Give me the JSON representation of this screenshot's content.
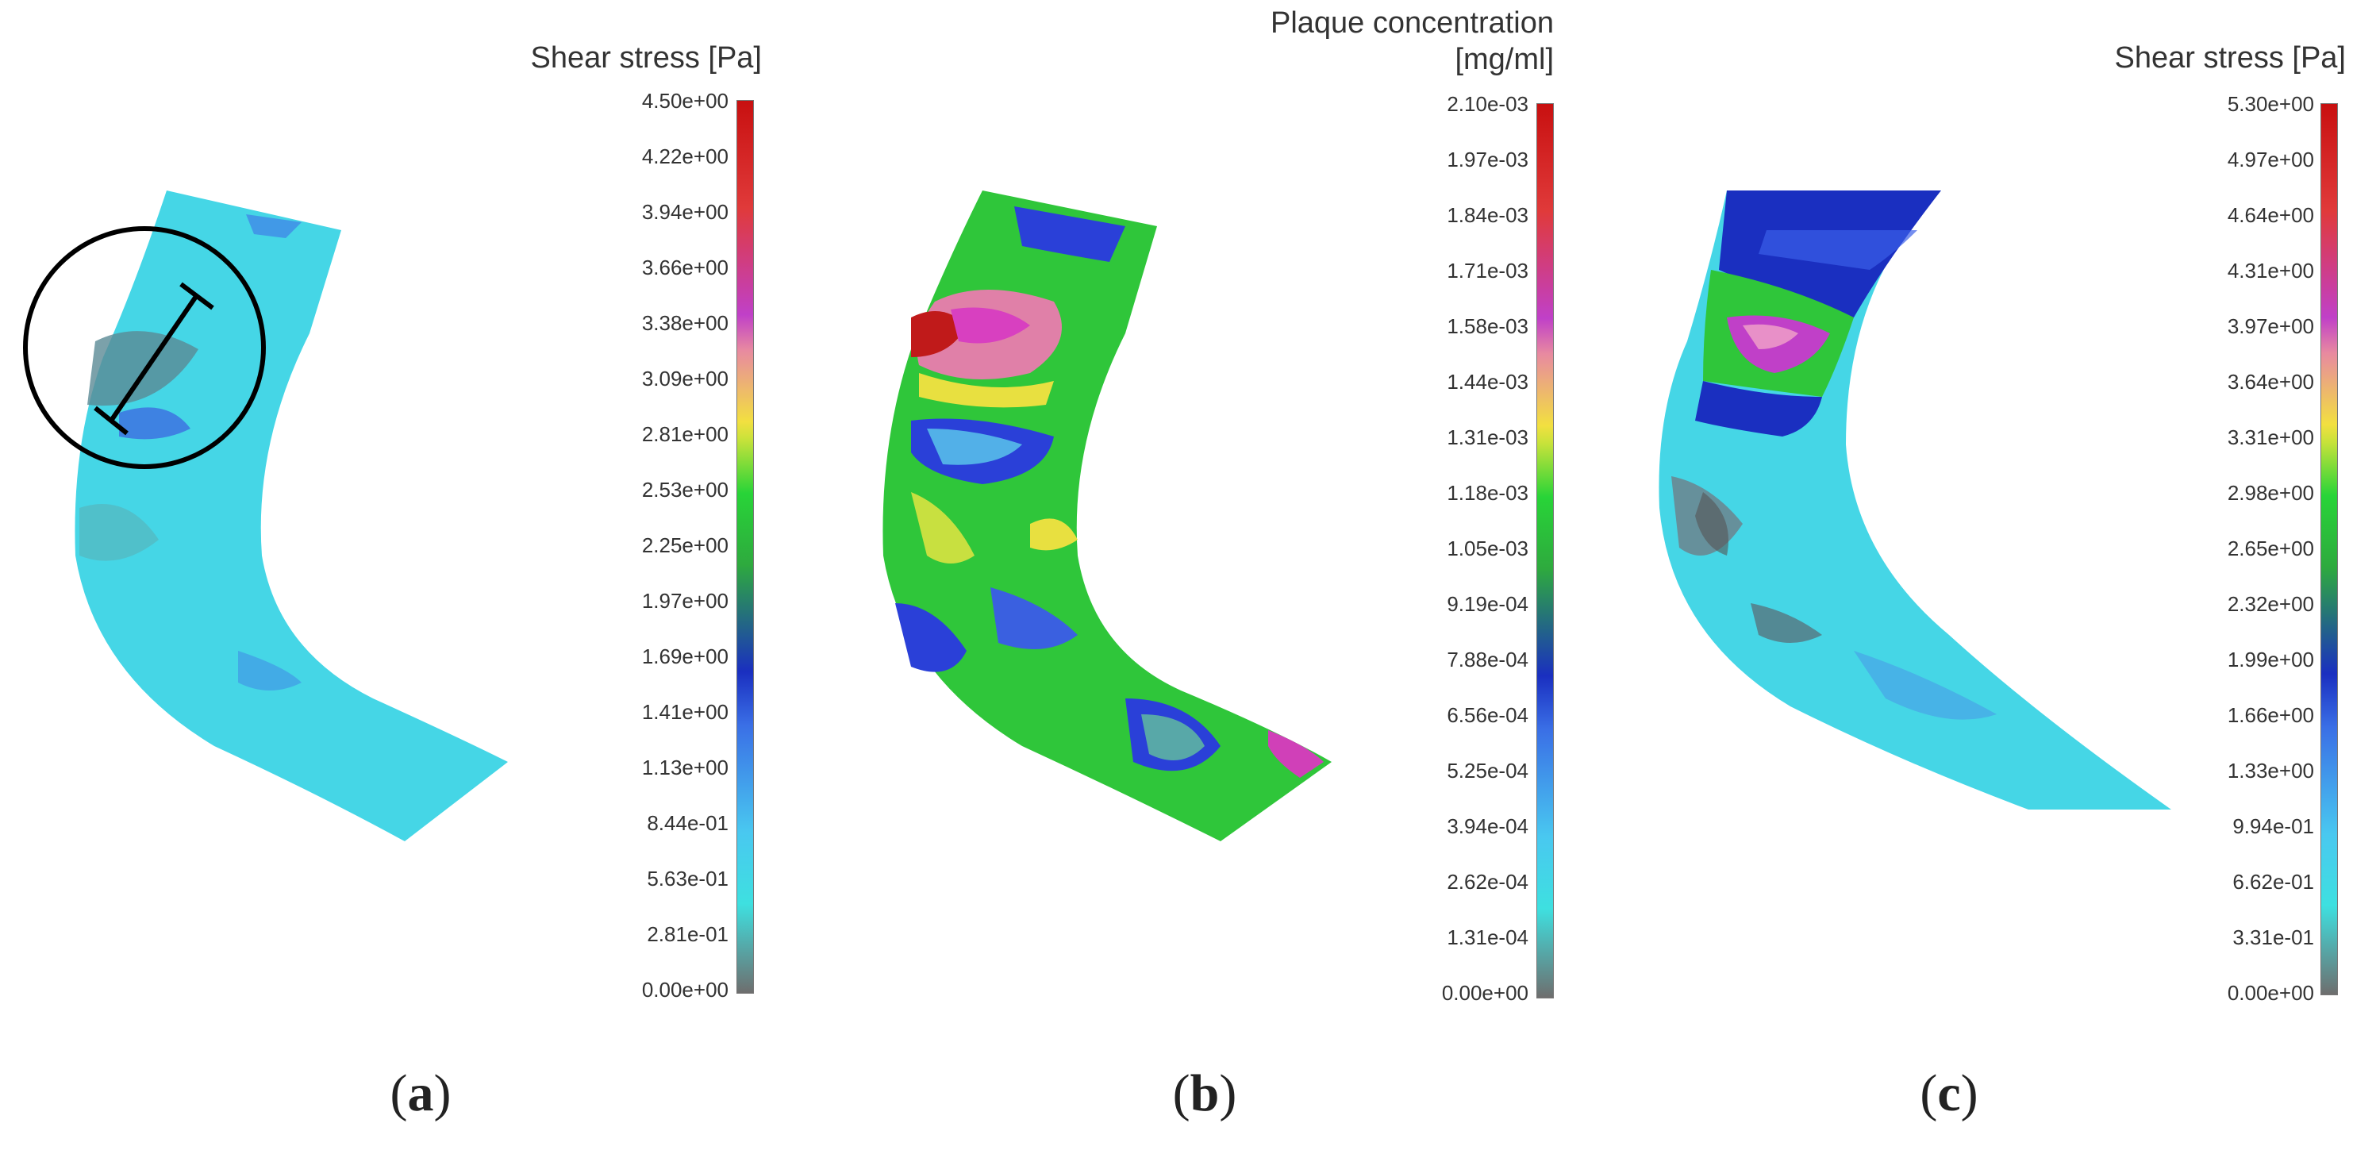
{
  "panels": [
    {
      "caption_letter": "a",
      "colorbar": {
        "title": "Shear stress [Pa]",
        "ticks": [
          "4.50e+00",
          "4.22e+00",
          "3.94e+00",
          "3.66e+00",
          "3.38e+00",
          "3.09e+00",
          "2.81e+00",
          "2.53e+00",
          "2.25e+00",
          "1.97e+00",
          "1.69e+00",
          "1.41e+00",
          "1.13e+00",
          "8.44e-01",
          "5.63e-01",
          "2.81e-01",
          "0.00e+00"
        ]
      }
    },
    {
      "caption_letter": "b",
      "colorbar": {
        "title_line1": "Plaque concentration",
        "title_line2": "[mg/ml]",
        "ticks": [
          "2.10e-03",
          "1.97e-03",
          "1.84e-03",
          "1.71e-03",
          "1.58e-03",
          "1.44e-03",
          "1.31e-03",
          "1.18e-03",
          "1.05e-03",
          "9.19e-04",
          "7.88e-04",
          "6.56e-04",
          "5.25e-04",
          "3.94e-04",
          "2.62e-04",
          "1.31e-04",
          "0.00e+00"
        ]
      }
    },
    {
      "caption_letter": "c",
      "colorbar": {
        "title": "Shear stress [Pa]",
        "ticks": [
          "5.30e+00",
          "4.97e+00",
          "4.64e+00",
          "4.31e+00",
          "3.97e+00",
          "3.64e+00",
          "3.31e+00",
          "2.98e+00",
          "2.65e+00",
          "2.32e+00",
          "1.99e+00",
          "1.66e+00",
          "1.33e+00",
          "9.94e-01",
          "6.62e-01",
          "3.31e-01",
          "0.00e+00"
        ]
      }
    }
  ],
  "colors": {
    "low": "#6e6e6e",
    "cyan": "#3ee0e0",
    "blue": "#1a2fc0",
    "green": "#28d438",
    "yellow": "#f2e040",
    "magenta": "#c040c8",
    "red": "#c81010"
  }
}
